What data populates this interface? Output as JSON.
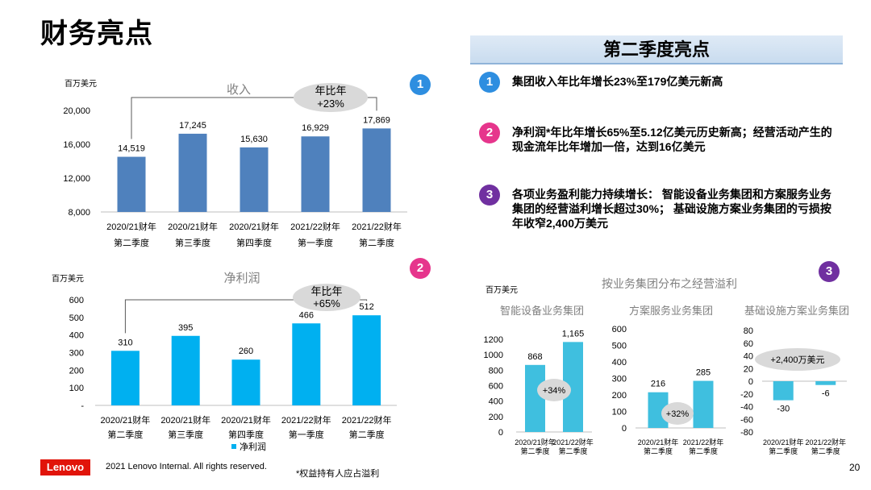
{
  "page": {
    "title": "财务亮点",
    "page_number": "20"
  },
  "colors": {
    "revenue_bar": "#4f81bd",
    "net_profit_bar": "#00b0f0",
    "segment_bar": "#3fbfdf",
    "badge1": "#2e8ee0",
    "badge2": "#e6358c",
    "badge3": "#7030a0",
    "brand": "#e1140a"
  },
  "chart_data": [
    {
      "id": "revenue",
      "type": "bar",
      "badge": "1",
      "unit": "百万美元",
      "title": "收入",
      "categories": [
        [
          "2020/21财年",
          "第二季度"
        ],
        [
          "2020/21财年",
          "第三季度"
        ],
        [
          "2020/21财年",
          "第四季度"
        ],
        [
          "2021/22财年",
          "第一季度"
        ],
        [
          "2021/22财年",
          "第二季度"
        ]
      ],
      "values": [
        14519,
        17245,
        15630,
        16929,
        17869
      ],
      "value_labels": [
        "14,519",
        "17,245",
        "15,630",
        "16,929",
        "17,869"
      ],
      "ylim": [
        8000,
        20000
      ],
      "yticks": [
        "8,000",
        "12,000",
        "16,000",
        "20,000"
      ],
      "ytick_values": [
        8000,
        12000,
        16000,
        20000
      ],
      "annotation": [
        "年比年",
        "+23%"
      ],
      "bracket": [
        0,
        4
      ]
    },
    {
      "id": "net_profit",
      "type": "bar",
      "badge": "2",
      "unit": "百万美元",
      "title": "净利润",
      "categories": [
        [
          "2020/21财年",
          "第二季度"
        ],
        [
          "2020/21财年",
          "第三季度"
        ],
        [
          "2020/21财年",
          "第四季度"
        ],
        [
          "2021/22财年",
          "第一季度"
        ],
        [
          "2021/22财年",
          "第二季度"
        ]
      ],
      "values": [
        310,
        395,
        260,
        466,
        512
      ],
      "value_labels": [
        "310",
        "395",
        "260",
        "466",
        "512"
      ],
      "ylim": [
        0,
        600
      ],
      "yticks": [
        "-",
        "100",
        "200",
        "300",
        "400",
        "500",
        "600"
      ],
      "ytick_values": [
        0,
        100,
        200,
        300,
        400,
        500,
        600
      ],
      "legend": "净利润",
      "annotation": [
        "年比年",
        "+65%"
      ],
      "bracket": [
        0,
        4
      ]
    },
    {
      "id": "segment_margin",
      "type": "bar",
      "badge": "3",
      "unit": "百万美元",
      "title": "按业务集团分布之经营溢利",
      "panels": [
        {
          "title": "智能设备业务集团",
          "categories": [
            [
              "2020/21财年",
              "第二季度"
            ],
            [
              "2021/22财年",
              "第二季度"
            ]
          ],
          "values": [
            868,
            1165
          ],
          "value_labels": [
            "868",
            "1,165"
          ],
          "ylim": [
            0,
            1200
          ],
          "yticks": [
            "0",
            "200",
            "400",
            "600",
            "800",
            "1000",
            "1200"
          ],
          "ytick_values": [
            0,
            200,
            400,
            600,
            800,
            1000,
            1200
          ],
          "annotation": "+34%"
        },
        {
          "title": "方案服务业务集团",
          "categories": [
            [
              "2020/21财年",
              "第二季度"
            ],
            [
              "2021/22财年",
              "第二季度"
            ]
          ],
          "values": [
            216,
            285
          ],
          "value_labels": [
            "216",
            "285"
          ],
          "ylim": [
            0,
            600
          ],
          "yticks": [
            "0",
            "100",
            "200",
            "300",
            "400",
            "500",
            "600"
          ],
          "ytick_values": [
            0,
            100,
            200,
            300,
            400,
            500,
            600
          ],
          "annotation": "+32%"
        },
        {
          "title": "基础设施方案业务集团",
          "categories": [
            [
              "2020/21财年",
              "第二季度"
            ],
            [
              "2021/22财年",
              "第二季度"
            ]
          ],
          "values": [
            -30,
            -6
          ],
          "value_labels": [
            "-30",
            "-6"
          ],
          "ylim": [
            -80,
            80
          ],
          "yticks": [
            "-80",
            "-60",
            "-40",
            "-20",
            "0",
            "20",
            "40",
            "60",
            "80"
          ],
          "ytick_values": [
            -80,
            -60,
            -40,
            -20,
            0,
            20,
            40,
            60,
            80
          ],
          "annotation": "+2,400万美元"
        }
      ]
    }
  ],
  "highlights": {
    "title": "第二季度亮点",
    "items": [
      {
        "badge": "1",
        "text": "集团收入年比年增长23%至179亿美元新高"
      },
      {
        "badge": "2",
        "text": "净利润*年比年增长65%至5.12亿美元历史新高；经营活动产生的现金流年比年增加一倍，达到16亿美元"
      },
      {
        "badge": "3",
        "text": "各项业务盈利能力持续增长： 智能设备业务集团和方案服务业务集团的经营溢利增长超过30%； 基础设施方案业务集团的亏损按年收窄2,400万美元"
      }
    ]
  },
  "footer": {
    "logo": "Lenovo",
    "copyright": "2021 Lenovo Internal. All rights reserved.",
    "note": "*权益持有人应占溢利"
  }
}
